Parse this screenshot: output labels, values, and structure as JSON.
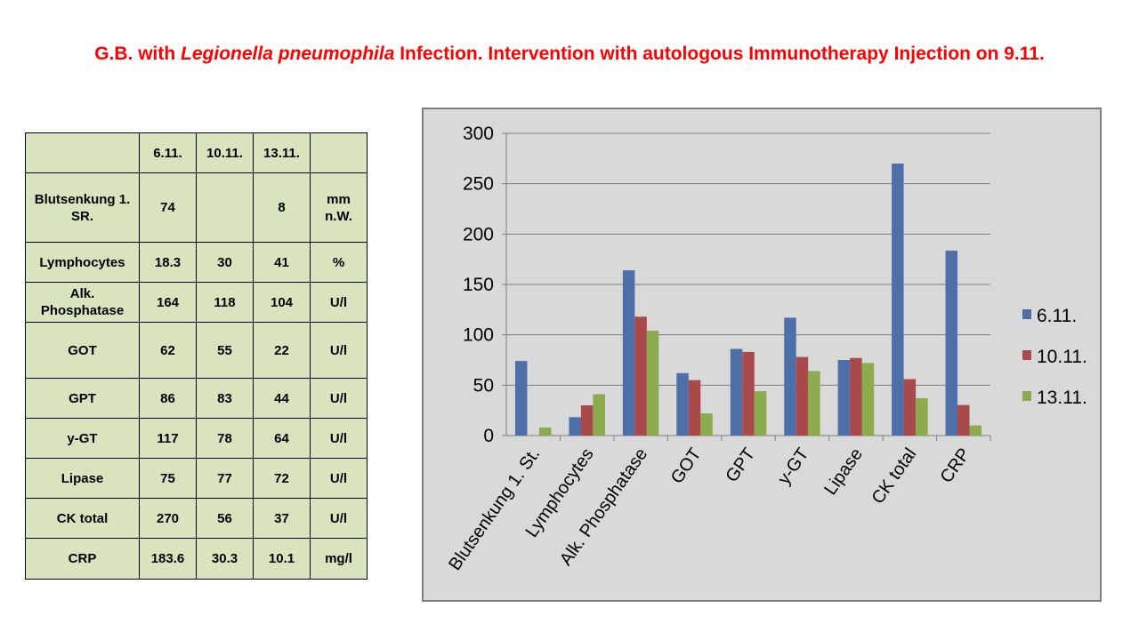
{
  "title": {
    "prefix": "G.B. with ",
    "organism": "Legionella pneumophila",
    "suffix": " Infection. Intervention with autologous Immunotherapy Injection on 9.11."
  },
  "table": {
    "headers": [
      "",
      "6.11.",
      "10.11.",
      "13.11.",
      ""
    ],
    "rows": [
      {
        "label": "Blutsenkung 1. SR.",
        "values": [
          "74",
          "",
          "8"
        ],
        "unit": "mm n.W."
      },
      {
        "label": "Lymphocytes",
        "values": [
          "18.3",
          "30",
          "41"
        ],
        "unit": "%"
      },
      {
        "label": "Alk. Phosphatase",
        "values": [
          "164",
          "118",
          "104"
        ],
        "unit": "U/l"
      },
      {
        "label": "GOT",
        "values": [
          "62",
          "55",
          "22"
        ],
        "unit": "U/l"
      },
      {
        "label": "GPT",
        "values": [
          "86",
          "83",
          "44"
        ],
        "unit": "U/l"
      },
      {
        "label": "y-GT",
        "values": [
          "117",
          "78",
          "64"
        ],
        "unit": "U/l"
      },
      {
        "label": "Lipase",
        "values": [
          "75",
          "77",
          "72"
        ],
        "unit": "U/l"
      },
      {
        "label": "CK total",
        "values": [
          "270",
          "56",
          "37"
        ],
        "unit": "U/l"
      },
      {
        "label": "CRP",
        "values": [
          "183.6",
          "30.3",
          "10.1"
        ],
        "unit": "mg/l"
      }
    ]
  },
  "chart_data": {
    "type": "bar",
    "categories": [
      "Blutsenkung 1. St.",
      "Lymphocytes",
      "Alk. Phosphatase",
      "GOT",
      "GPT",
      "y-GT",
      "Lipase",
      "CK total",
      "CRP"
    ],
    "series": [
      {
        "name": "6.11.",
        "color": "#4f6fa8",
        "values": [
          74,
          18.3,
          164,
          62,
          86,
          117,
          75,
          270,
          183.6
        ]
      },
      {
        "name": "10.11.",
        "color": "#a84a4a",
        "values": [
          null,
          30,
          118,
          55,
          83,
          78,
          77,
          56,
          30.3
        ]
      },
      {
        "name": "13.11.",
        "color": "#8caa4e",
        "values": [
          8,
          41,
          104,
          22,
          44,
          64,
          72,
          37,
          10.1
        ]
      }
    ],
    "ylim": [
      0,
      300
    ],
    "yticks": [
      0,
      50,
      100,
      150,
      200,
      250,
      300
    ],
    "grid": true,
    "legend": "right"
  }
}
